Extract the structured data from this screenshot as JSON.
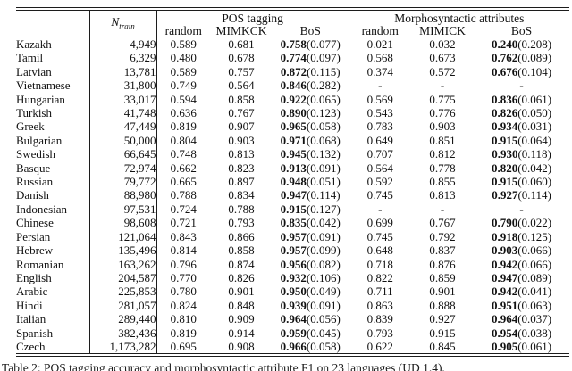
{
  "colors": {
    "background": "#ffffff",
    "text": "#111111",
    "rule": "#1c1c1c"
  },
  "table": {
    "col_headers": {
      "ntrain_base": "N",
      "ntrain_sub": "train",
      "group_pos": "POS tagging",
      "group_morph": "Morphosyntactic attributes",
      "pos_sub": [
        "random",
        "MIMKCK",
        "BoS"
      ],
      "morph_sub": [
        "random",
        "MIMICK",
        "BoS"
      ]
    },
    "rows": [
      {
        "lang": "Kazakh",
        "n_train": "4,949",
        "pos_random": "0.589",
        "pos_mimick": "0.681",
        "pos_bos": "0.758",
        "pos_bos_std": "0.077",
        "m_random": "0.021",
        "m_mimick": "0.032",
        "m_bos": "0.240",
        "m_bos_std": "0.208"
      },
      {
        "lang": "Tamil",
        "n_train": "6,329",
        "pos_random": "0.480",
        "pos_mimick": "0.678",
        "pos_bos": "0.774",
        "pos_bos_std": "0.097",
        "m_random": "0.568",
        "m_mimick": "0.673",
        "m_bos": "0.762",
        "m_bos_std": "0.089"
      },
      {
        "lang": "Latvian",
        "n_train": "13,781",
        "pos_random": "0.589",
        "pos_mimick": "0.757",
        "pos_bos": "0.872",
        "pos_bos_std": "0.115",
        "m_random": "0.374",
        "m_mimick": "0.572",
        "m_bos": "0.676",
        "m_bos_std": "0.104"
      },
      {
        "lang": "Vietnamese",
        "n_train": "31,800",
        "pos_random": "0.749",
        "pos_mimick": "0.564",
        "pos_bos": "0.846",
        "pos_bos_std": "0.282",
        "m_random": "-",
        "m_mimick": "-",
        "m_bos": "-",
        "m_bos_std": null
      },
      {
        "lang": "Hungarian",
        "n_train": "33,017",
        "pos_random": "0.594",
        "pos_mimick": "0.858",
        "pos_bos": "0.922",
        "pos_bos_std": "0.065",
        "m_random": "0.569",
        "m_mimick": "0.775",
        "m_bos": "0.836",
        "m_bos_std": "0.061"
      },
      {
        "lang": "Turkish",
        "n_train": "41,748",
        "pos_random": "0.636",
        "pos_mimick": "0.767",
        "pos_bos": "0.890",
        "pos_bos_std": "0.123",
        "m_random": "0.543",
        "m_mimick": "0.776",
        "m_bos": "0.826",
        "m_bos_std": "0.050"
      },
      {
        "lang": "Greek",
        "n_train": "47,449",
        "pos_random": "0.819",
        "pos_mimick": "0.907",
        "pos_bos": "0.965",
        "pos_bos_std": "0.058",
        "m_random": "0.783",
        "m_mimick": "0.903",
        "m_bos": "0.934",
        "m_bos_std": "0.031"
      },
      {
        "lang": "Bulgarian",
        "n_train": "50,000",
        "pos_random": "0.804",
        "pos_mimick": "0.903",
        "pos_bos": "0.971",
        "pos_bos_std": "0.068",
        "m_random": "0.649",
        "m_mimick": "0.851",
        "m_bos": "0.915",
        "m_bos_std": "0.064"
      },
      {
        "lang": "Swedish",
        "n_train": "66,645",
        "pos_random": "0.748",
        "pos_mimick": "0.813",
        "pos_bos": "0.945",
        "pos_bos_std": "0.132",
        "m_random": "0.707",
        "m_mimick": "0.812",
        "m_bos": "0.930",
        "m_bos_std": "0.118"
      },
      {
        "lang": "Basque",
        "n_train": "72,974",
        "pos_random": "0.662",
        "pos_mimick": "0.823",
        "pos_bos": "0.913",
        "pos_bos_std": "0.091",
        "m_random": "0.564",
        "m_mimick": "0.778",
        "m_bos": "0.820",
        "m_bos_std": "0.042"
      },
      {
        "lang": "Russian",
        "n_train": "79,772",
        "pos_random": "0.665",
        "pos_mimick": "0.897",
        "pos_bos": "0.948",
        "pos_bos_std": "0.051",
        "m_random": "0.592",
        "m_mimick": "0.855",
        "m_bos": "0.915",
        "m_bos_std": "0.060"
      },
      {
        "lang": "Danish",
        "n_train": "88,980",
        "pos_random": "0.788",
        "pos_mimick": "0.834",
        "pos_bos": "0.947",
        "pos_bos_std": "0.114",
        "m_random": "0.745",
        "m_mimick": "0.813",
        "m_bos": "0.927",
        "m_bos_std": "0.114"
      },
      {
        "lang": "Indonesian",
        "n_train": "97,531",
        "pos_random": "0.724",
        "pos_mimick": "0.788",
        "pos_bos": "0.915",
        "pos_bos_std": "0.127",
        "m_random": "-",
        "m_mimick": "-",
        "m_bos": "-",
        "m_bos_std": null
      },
      {
        "lang": "Chinese",
        "n_train": "98,608",
        "pos_random": "0.721",
        "pos_mimick": "0.793",
        "pos_bos": "0.835",
        "pos_bos_std": "0.042",
        "m_random": "0.699",
        "m_mimick": "0.767",
        "m_bos": "0.790",
        "m_bos_std": "0.022"
      },
      {
        "lang": "Persian",
        "n_train": "121,064",
        "pos_random": "0.843",
        "pos_mimick": "0.866",
        "pos_bos": "0.957",
        "pos_bos_std": "0.091",
        "m_random": "0.745",
        "m_mimick": "0.792",
        "m_bos": "0.918",
        "m_bos_std": "0.125"
      },
      {
        "lang": "Hebrew",
        "n_train": "135,496",
        "pos_random": "0.814",
        "pos_mimick": "0.858",
        "pos_bos": "0.957",
        "pos_bos_std": "0.099",
        "m_random": "0.648",
        "m_mimick": "0.837",
        "m_bos": "0.903",
        "m_bos_std": "0.066"
      },
      {
        "lang": "Romanian",
        "n_train": "163,262",
        "pos_random": "0.796",
        "pos_mimick": "0.874",
        "pos_bos": "0.956",
        "pos_bos_std": "0.082",
        "m_random": "0.718",
        "m_mimick": "0.876",
        "m_bos": "0.942",
        "m_bos_std": "0.066"
      },
      {
        "lang": "English",
        "n_train": "204,587",
        "pos_random": "0.770",
        "pos_mimick": "0.826",
        "pos_bos": "0.932",
        "pos_bos_std": "0.106",
        "m_random": "0.822",
        "m_mimick": "0.859",
        "m_bos": "0.947",
        "m_bos_std": "0.089"
      },
      {
        "lang": "Arabic",
        "n_train": "225,853",
        "pos_random": "0.780",
        "pos_mimick": "0.901",
        "pos_bos": "0.950",
        "pos_bos_std": "0.049",
        "m_random": "0.711",
        "m_mimick": "0.901",
        "m_bos": "0.942",
        "m_bos_std": "0.041"
      },
      {
        "lang": "Hindi",
        "n_train": "281,057",
        "pos_random": "0.824",
        "pos_mimick": "0.848",
        "pos_bos": "0.939",
        "pos_bos_std": "0.091",
        "m_random": "0.863",
        "m_mimick": "0.888",
        "m_bos": "0.951",
        "m_bos_std": "0.063"
      },
      {
        "lang": "Italian",
        "n_train": "289,440",
        "pos_random": "0.810",
        "pos_mimick": "0.909",
        "pos_bos": "0.964",
        "pos_bos_std": "0.056",
        "m_random": "0.839",
        "m_mimick": "0.927",
        "m_bos": "0.964",
        "m_bos_std": "0.037"
      },
      {
        "lang": "Spanish",
        "n_train": "382,436",
        "pos_random": "0.819",
        "pos_mimick": "0.914",
        "pos_bos": "0.959",
        "pos_bos_std": "0.045",
        "m_random": "0.793",
        "m_mimick": "0.915",
        "m_bos": "0.954",
        "m_bos_std": "0.038"
      },
      {
        "lang": "Czech",
        "n_train": "1,173,282",
        "pos_random": "0.695",
        "pos_mimick": "0.908",
        "pos_bos": "0.966",
        "pos_bos_std": "0.058",
        "m_random": "0.622",
        "m_mimick": "0.845",
        "m_bos": "0.905",
        "m_bos_std": "0.061"
      }
    ]
  },
  "caption": "Table 2: POS tagging accuracy and morphosyntactic attribute F1 on 23 languages (UD 1.4)."
}
